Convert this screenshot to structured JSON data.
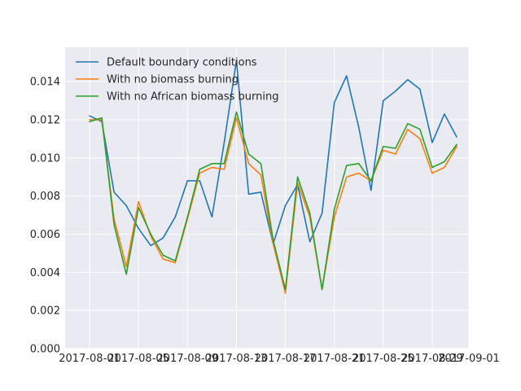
{
  "chart_data": {
    "type": "line",
    "title": "",
    "xlabel": "",
    "ylabel": "",
    "xlim": [
      "2017-07-30",
      "2017-09-01"
    ],
    "ylim": [
      0,
      0.0158
    ],
    "x_ticks": [
      "2017-08-01",
      "2017-08-05",
      "2017-08-09",
      "2017-08-13",
      "2017-08-17",
      "2017-08-21",
      "2017-08-25",
      "2017-08-29",
      "2017-09-01"
    ],
    "y_ticks": [
      "0.000",
      "0.002",
      "0.004",
      "0.006",
      "0.008",
      "0.010",
      "0.012",
      "0.014"
    ],
    "grid": true,
    "legend_position": "top-left",
    "x": [
      "2017-08-01",
      "2017-08-02",
      "2017-08-03",
      "2017-08-04",
      "2017-08-05",
      "2017-08-06",
      "2017-08-07",
      "2017-08-08",
      "2017-08-09",
      "2017-08-10",
      "2017-08-11",
      "2017-08-12",
      "2017-08-13",
      "2017-08-14",
      "2017-08-15",
      "2017-08-16",
      "2017-08-17",
      "2017-08-18",
      "2017-08-19",
      "2017-08-20",
      "2017-08-21",
      "2017-08-22",
      "2017-08-23",
      "2017-08-24",
      "2017-08-25",
      "2017-08-26",
      "2017-08-27",
      "2017-08-28",
      "2017-08-29",
      "2017-08-30",
      "2017-08-31"
    ],
    "series": [
      {
        "name": "Default boundary conditions",
        "color": "#1f77b4",
        "values": [
          0.0122,
          0.0119,
          0.0082,
          0.0075,
          0.0063,
          0.0054,
          0.0058,
          0.0069,
          0.0088,
          0.0088,
          0.0069,
          0.0108,
          0.0151,
          0.0081,
          0.0082,
          0.0055,
          0.0075,
          0.0086,
          0.0056,
          0.0071,
          0.0129,
          0.0143,
          0.0116,
          0.0083,
          0.013,
          0.0135,
          0.0141,
          0.0136,
          0.0108,
          0.0123,
          0.0111
        ]
      },
      {
        "name": "With no biomass burning",
        "color": "#ff7f0e",
        "values": [
          0.012,
          0.012,
          0.0068,
          0.0043,
          0.0077,
          0.0059,
          0.0047,
          0.0045,
          0.0068,
          0.0092,
          0.0095,
          0.0094,
          0.0121,
          0.0097,
          0.0091,
          0.0055,
          0.0029,
          0.0087,
          0.0069,
          0.0031,
          0.0069,
          0.009,
          0.0092,
          0.0088,
          0.0104,
          0.0102,
          0.0115,
          0.011,
          0.0092,
          0.0095,
          0.0106
        ]
      },
      {
        "name": "With no African biomass burning",
        "color": "#2ca02c",
        "values": [
          0.0119,
          0.0121,
          0.0065,
          0.0039,
          0.0074,
          0.006,
          0.0049,
          0.0046,
          0.0069,
          0.0094,
          0.0097,
          0.0097,
          0.0124,
          0.0102,
          0.0097,
          0.0057,
          0.0031,
          0.009,
          0.0071,
          0.0031,
          0.0073,
          0.0096,
          0.0097,
          0.0088,
          0.0106,
          0.0105,
          0.0118,
          0.0115,
          0.0095,
          0.0098,
          0.0107
        ]
      }
    ]
  }
}
